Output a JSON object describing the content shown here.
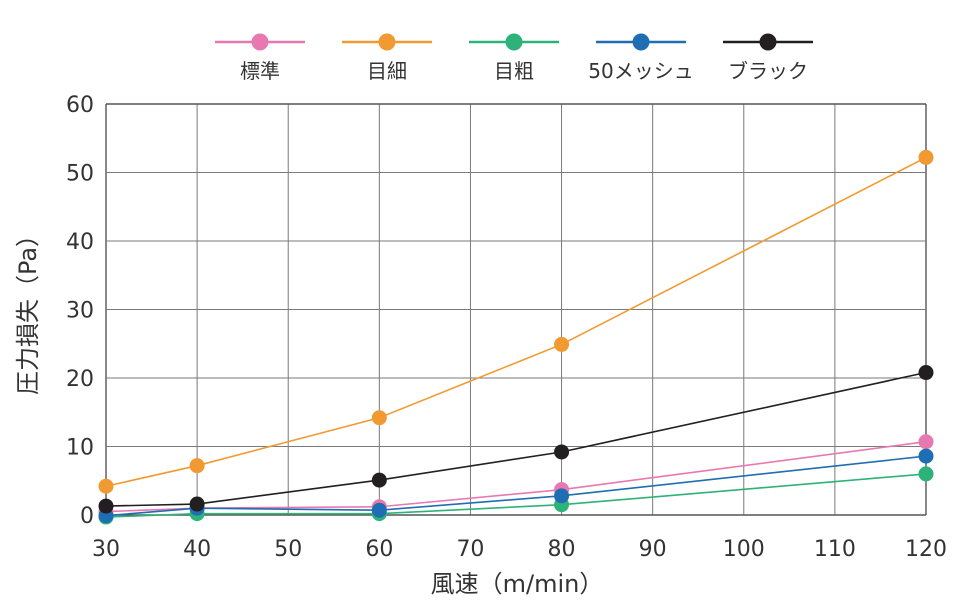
{
  "chart_data": {
    "type": "line",
    "xlabel": "風速（m/min）",
    "ylabel": "圧力損失（Pa）",
    "x_ticks": [
      "30",
      "40",
      "50",
      "60",
      "70",
      "80",
      "90",
      "100",
      "110",
      "120"
    ],
    "y_ticks": [
      "0",
      "10",
      "20",
      "30",
      "40",
      "50",
      "60"
    ],
    "xlim": [
      30,
      120
    ],
    "ylim": [
      0,
      60
    ],
    "grid": true,
    "legend_position": "top",
    "series": [
      {
        "name": "標準",
        "color": "#e879b0",
        "x": [
          30,
          40,
          60,
          80,
          120
        ],
        "y": [
          0.5,
          1.0,
          1.2,
          3.7,
          10.7
        ]
      },
      {
        "name": "目細",
        "color": "#f19a32",
        "x": [
          30,
          40,
          60,
          80,
          120
        ],
        "y": [
          4.2,
          7.2,
          14.2,
          24.9,
          52.2
        ]
      },
      {
        "name": "目粗",
        "color": "#2db37a",
        "x": [
          30,
          40,
          60,
          80,
          120
        ],
        "y": [
          -0.3,
          0.2,
          0.2,
          1.5,
          6.0
        ]
      },
      {
        "name": "50メッシュ",
        "color": "#1f6db3",
        "x": [
          30,
          40,
          60,
          80,
          120
        ],
        "y": [
          -0.1,
          1.0,
          0.7,
          2.8,
          8.6
        ]
      },
      {
        "name": "ブラック",
        "color": "#231f20",
        "x": [
          30,
          40,
          60,
          80,
          120
        ],
        "y": [
          1.3,
          1.6,
          5.1,
          9.2,
          20.8
        ]
      }
    ]
  }
}
